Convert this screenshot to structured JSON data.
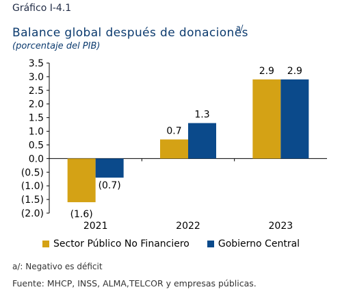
{
  "header": {
    "figure_number": "Gráfico I-4.1",
    "title": "Balance global después de donaciones",
    "title_note_mark": "a/",
    "subtitle": "(porcentaje del PIB)"
  },
  "footer": {
    "note": "a/: Negativo es déficit",
    "source": "Fuente: MHCP, INSS, ALMA,TELCOR  y empresas públicas."
  },
  "colors": {
    "series_spnf": "#d4a215",
    "series_gc": "#0b4a8b",
    "axis": "#000000"
  },
  "chart_data": {
    "type": "bar",
    "categories": [
      "2021",
      "2022",
      "2023"
    ],
    "series": [
      {
        "name": "Sector Público No Financiero",
        "values": [
          -1.6,
          0.7,
          2.9
        ],
        "labels": [
          "(1.6)",
          "0.7",
          "2.9"
        ]
      },
      {
        "name": "Gobierno Central",
        "values": [
          -0.7,
          1.3,
          2.9
        ],
        "labels": [
          "(0.7)",
          "1.3",
          "2.9"
        ]
      }
    ],
    "ylim": [
      -2.0,
      3.5
    ],
    "yticks": [
      3.5,
      3.0,
      2.5,
      2.0,
      1.5,
      1.0,
      0.5,
      0.0,
      -0.5,
      -1.0,
      -1.5,
      -2.0
    ],
    "ytick_labels": [
      "3.5",
      "3.0",
      "2.5",
      "2.0",
      "1.5",
      "1.0",
      "0.5",
      "0.0",
      "(0.5)",
      "(1.0)",
      "(1.5)",
      "(2.0)"
    ],
    "grid": false,
    "legend_position": "bottom"
  }
}
